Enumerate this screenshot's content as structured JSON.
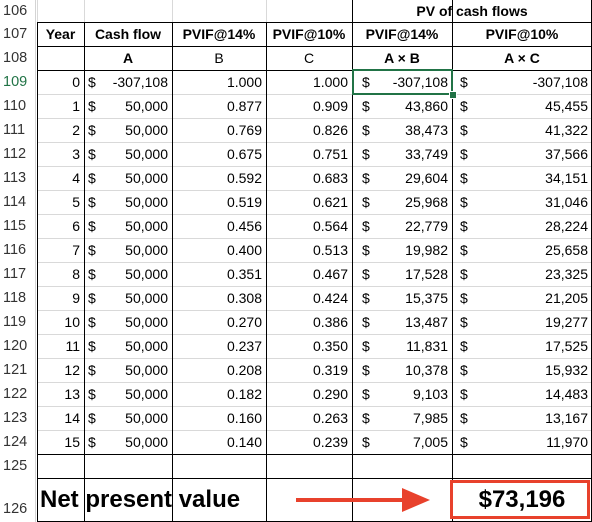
{
  "row_numbers": [
    "106",
    "107",
    "108",
    "109",
    "110",
    "111",
    "112",
    "113",
    "114",
    "115",
    "116",
    "117",
    "118",
    "119",
    "120",
    "121",
    "122",
    "123",
    "124",
    "125",
    "126"
  ],
  "header": {
    "group_label": "PV of cash flows",
    "col_year": "Year",
    "col_cashflow": "Cash flow",
    "col_pvif14": "PVIF@14%",
    "col_pvif10": "PVIF@10%",
    "col_pv14": "PVIF@14%",
    "col_pv10": "PVIF@10%",
    "sub_a": "A",
    "sub_b": "B",
    "sub_c": "C",
    "sub_ab": "A × B",
    "sub_ac": "A × C"
  },
  "rows": [
    {
      "year": "0",
      "cf": "-307,108",
      "b": "1.000",
      "c": "1.000",
      "ab": "-307,108",
      "ac": "-307,108"
    },
    {
      "year": "1",
      "cf": "50,000",
      "b": "0.877",
      "c": "0.909",
      "ab": "43,860",
      "ac": "45,455"
    },
    {
      "year": "2",
      "cf": "50,000",
      "b": "0.769",
      "c": "0.826",
      "ab": "38,473",
      "ac": "41,322"
    },
    {
      "year": "3",
      "cf": "50,000",
      "b": "0.675",
      "c": "0.751",
      "ab": "33,749",
      "ac": "37,566"
    },
    {
      "year": "4",
      "cf": "50,000",
      "b": "0.592",
      "c": "0.683",
      "ab": "29,604",
      "ac": "34,151"
    },
    {
      "year": "5",
      "cf": "50,000",
      "b": "0.519",
      "c": "0.621",
      "ab": "25,968",
      "ac": "31,046"
    },
    {
      "year": "6",
      "cf": "50,000",
      "b": "0.456",
      "c": "0.564",
      "ab": "22,779",
      "ac": "28,224"
    },
    {
      "year": "7",
      "cf": "50,000",
      "b": "0.400",
      "c": "0.513",
      "ab": "19,982",
      "ac": "25,658"
    },
    {
      "year": "8",
      "cf": "50,000",
      "b": "0.351",
      "c": "0.467",
      "ab": "17,528",
      "ac": "23,325"
    },
    {
      "year": "9",
      "cf": "50,000",
      "b": "0.308",
      "c": "0.424",
      "ab": "15,375",
      "ac": "21,205"
    },
    {
      "year": "10",
      "cf": "50,000",
      "b": "0.270",
      "c": "0.386",
      "ab": "13,487",
      "ac": "19,277"
    },
    {
      "year": "11",
      "cf": "50,000",
      "b": "0.237",
      "c": "0.350",
      "ab": "11,831",
      "ac": "17,525"
    },
    {
      "year": "12",
      "cf": "50,000",
      "b": "0.208",
      "c": "0.319",
      "ab": "10,378",
      "ac": "15,932"
    },
    {
      "year": "13",
      "cf": "50,000",
      "b": "0.182",
      "c": "0.290",
      "ab": "9,103",
      "ac": "14,483"
    },
    {
      "year": "14",
      "cf": "50,000",
      "b": "0.160",
      "c": "0.263",
      "ab": "7,985",
      "ac": "13,167"
    },
    {
      "year": "15",
      "cf": "50,000",
      "b": "0.140",
      "c": "0.239",
      "ab": "7,005",
      "ac": "11,970"
    }
  ],
  "currency_symbol": "$",
  "npv_label": "Net present value",
  "npv_value": "$73,196",
  "colors": {
    "highlight_red": "#e8412c",
    "selection_green": "#217346"
  }
}
